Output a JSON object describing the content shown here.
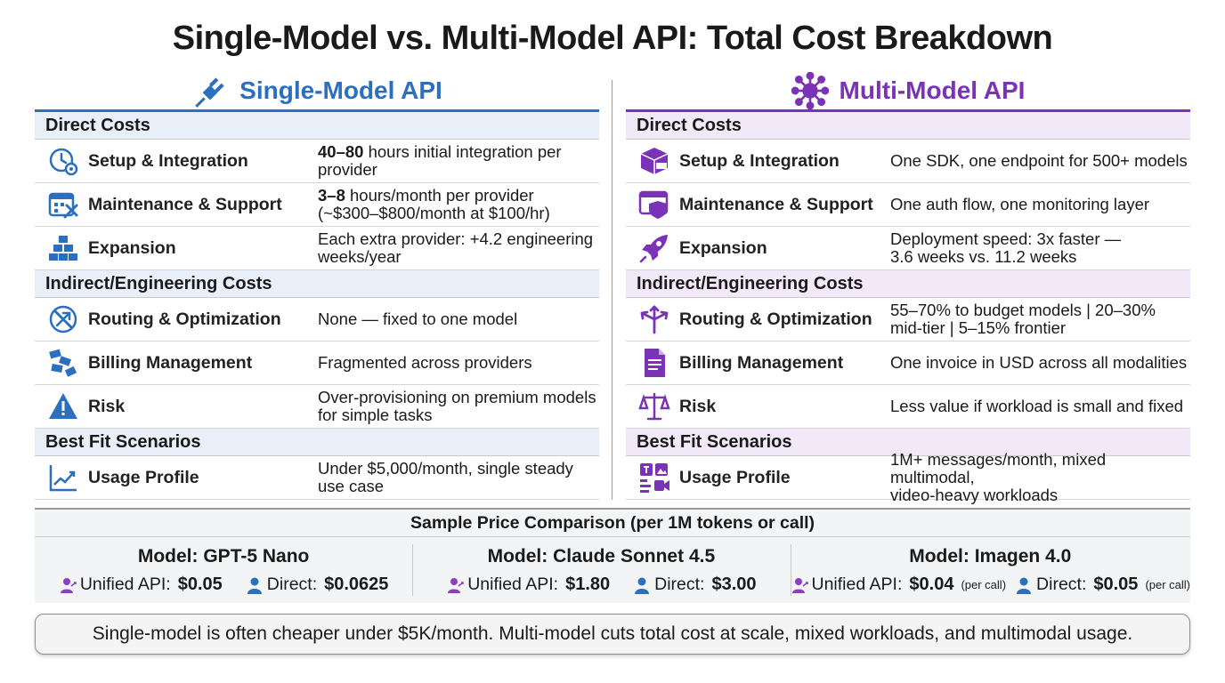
{
  "title": "Single-Model vs. Multi-Model API: Total Cost Breakdown",
  "colors": {
    "single_accent": "#2c6fbe",
    "multi_accent": "#7a32b7",
    "single_section_bg": "#e8eff9",
    "multi_section_bg": "#f1e9f8"
  },
  "single": {
    "heading": "Single-Model API",
    "heading_icon": "plug-icon",
    "direct_costs": "Direct Costs",
    "setup": {
      "label": "Setup & Integration",
      "icon": "clock-gear-icon",
      "value_bold": "40–80",
      "value": " hours initial integration per provider"
    },
    "maintenance": {
      "label": "Maintenance & Support",
      "icon": "calendar-tools-icon",
      "value_bold": "3–8",
      "value": " hours/month per provider",
      "value2": "(~$300–$800/month at $100/hr)"
    },
    "expansion": {
      "label": "Expansion",
      "icon": "blocks-icon",
      "value": "Each extra provider: +4.2 engineering",
      "value2": "weeks/year"
    },
    "indirect_costs": "Indirect/Engineering Costs",
    "routing": {
      "label": "Routing & Optimization",
      "icon": "no-routing-icon",
      "value": "None — fixed to one model"
    },
    "billing": {
      "label": "Billing Management",
      "icon": "scattered-bills-icon",
      "value": "Fragmented across providers"
    },
    "risk": {
      "label": "Risk",
      "icon": "warning-icon",
      "value": "Over-provisioning on premium models",
      "value2": "for simple tasks"
    },
    "best_fit": "Best Fit Scenarios",
    "usage": {
      "label": "Usage Profile",
      "icon": "trend-line-icon",
      "value": "Under $5,000/month, single steady",
      "value2": "use case"
    }
  },
  "multi": {
    "heading": "Multi-Model API",
    "heading_icon": "hub-icon",
    "direct_costs": "Direct Costs",
    "setup": {
      "label": "Setup & Integration",
      "icon": "sdk-box-icon",
      "value": "One SDK, one endpoint for 500+ models"
    },
    "maintenance": {
      "label": "Maintenance & Support",
      "icon": "browser-shield-icon",
      "value": "One auth flow, one monitoring layer"
    },
    "expansion": {
      "label": "Expansion",
      "icon": "rocket-icon",
      "value": "Deployment speed: 3x faster —",
      "value2": "3.6 weeks vs. 11.2 weeks"
    },
    "indirect_costs": "Indirect/Engineering Costs",
    "routing": {
      "label": "Routing & Optimization",
      "icon": "split-arrows-icon",
      "value": "55–70% to budget models | 20–30%",
      "value2": "mid-tier | 5–15% frontier"
    },
    "billing": {
      "label": "Billing Management",
      "icon": "invoice-icon",
      "value": "One invoice in USD across all modalities"
    },
    "risk": {
      "label": "Risk",
      "icon": "scales-icon",
      "value": "Less value if workload is small and fixed"
    },
    "best_fit": "Best Fit Scenarios",
    "usage": {
      "label": "Usage Profile",
      "icon": "multimodal-icon",
      "value": "1M+ messages/month, mixed multimodal,",
      "value2": "video-heavy workloads"
    }
  },
  "price_comparison": {
    "heading": "Sample Price Comparison (per 1M tokens or call)",
    "models": [
      {
        "name": "Model: GPT-5 Nano",
        "unified_label": "Unified API:",
        "unified_value": "$0.05",
        "unified_unit": "",
        "direct_label": "Direct:",
        "direct_value": "$0.0625",
        "direct_unit": ""
      },
      {
        "name": "Model: Claude Sonnet 4.5",
        "unified_label": "Unified API:",
        "unified_value": "$1.80",
        "unified_unit": "",
        "direct_label": "Direct:",
        "direct_value": "$3.00",
        "direct_unit": ""
      },
      {
        "name": "Model: Imagen 4.0",
        "unified_label": "Unified API:",
        "unified_value": "$0.04",
        "unified_unit": "(per call)",
        "direct_label": "Direct:",
        "direct_value": "$0.05",
        "direct_unit": "(per call)"
      }
    ]
  },
  "footer": "Single-model is often cheaper under $5K/month. Multi-model cuts total cost at scale, mixed workloads, and multimodal usage."
}
